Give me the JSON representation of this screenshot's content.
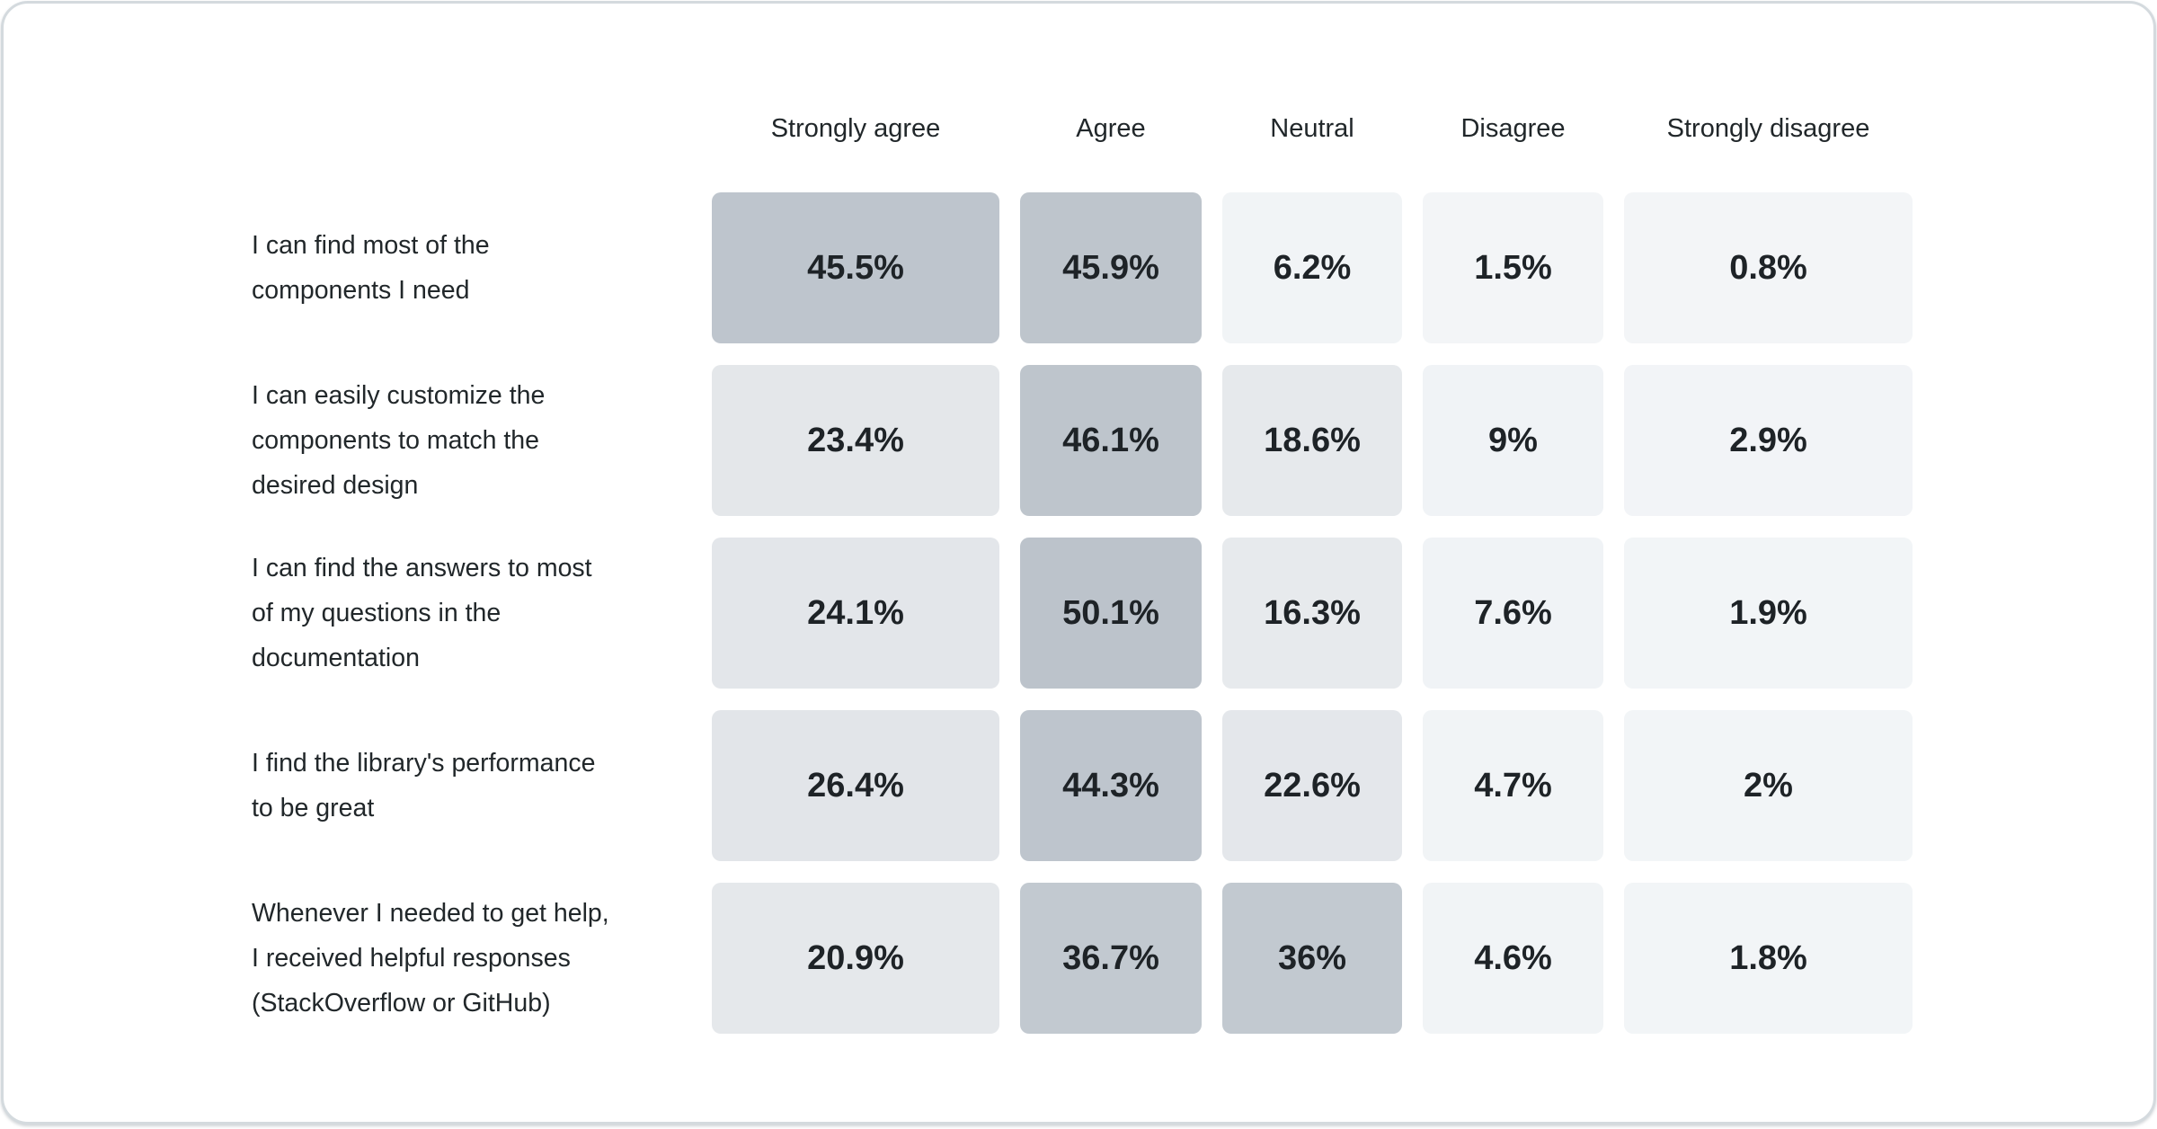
{
  "page": {
    "background": "#ffffff",
    "card_background": "#ffffff",
    "card_border_color": "#d4dade"
  },
  "chart_data": {
    "type": "heatmap",
    "title": "",
    "columns": [
      "Strongly agree",
      "Agree",
      "Neutral",
      "Disagree",
      "Strongly disagree"
    ],
    "rows": [
      {
        "label": "I can find most of the components I need",
        "lines": [
          "I can find most of the",
          "components I need"
        ],
        "values": [
          45.5,
          45.9,
          6.2,
          1.5,
          0.8
        ]
      },
      {
        "label": "I can easily customize the components to match the desired design",
        "lines": [
          "I can easily customize the",
          "components to match the",
          "desired design"
        ],
        "values": [
          23.4,
          46.1,
          18.6,
          9,
          2.9
        ]
      },
      {
        "label": "I can find the answers to most of my questions in the documentation",
        "lines": [
          "I can find the answers to most",
          "of my questions in the",
          "documentation"
        ],
        "values": [
          24.1,
          50.1,
          16.3,
          7.6,
          1.9
        ]
      },
      {
        "label": "I find the library's performance to be great",
        "lines": [
          "I find the library's performance",
          "to be great"
        ],
        "values": [
          26.4,
          44.3,
          22.6,
          4.7,
          2
        ]
      },
      {
        "label": "Whenever I needed to get help, I received helpful responses (StackOverflow or GitHub)",
        "lines": [
          "Whenever I needed to get help,",
          "I received helpful responses",
          "(StackOverflow or GitHub)"
        ],
        "values": [
          20.9,
          36.7,
          36,
          4.6,
          1.8
        ]
      }
    ],
    "value_suffix": "%",
    "text_color": "#21272a",
    "legend_position": "none",
    "grid": false,
    "color_scale": {
      "stops": [
        {
          "value": 0,
          "color": "#f3f5f7"
        },
        {
          "value": 9,
          "color": "#f0f3f6"
        },
        {
          "value": 16,
          "color": "#e7eaed"
        },
        {
          "value": 27,
          "color": "#e2e5e9"
        },
        {
          "value": 36,
          "color": "#c2c9d0"
        },
        {
          "value": 50.1,
          "color": "#bcc3cb"
        }
      ]
    }
  }
}
